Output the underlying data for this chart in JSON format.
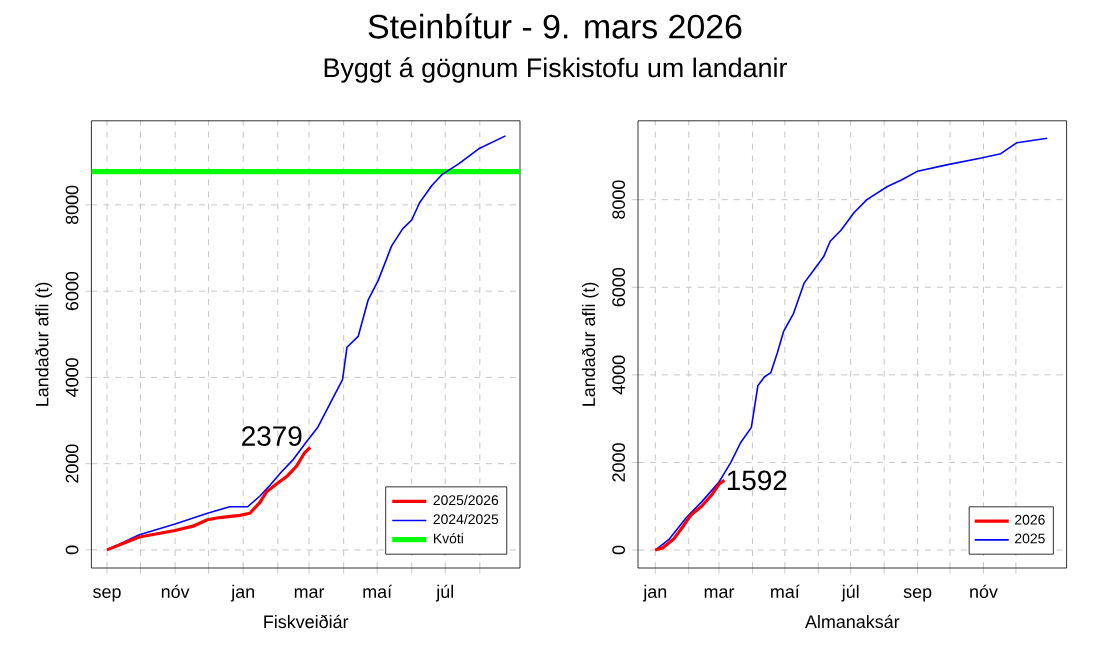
{
  "chart_data": [
    {
      "type": "line",
      "title": "Steinbítur -  9. mars 2026",
      "subtitle": "Byggt á gögnum Fiskistofu um landanir",
      "xlabel": "Fiskveiðiár",
      "ylabel": "Landaður afli (t)",
      "xlim": [
        "2025-08-18",
        "2026-09-06"
      ],
      "ylim": [
        -420,
        9950
      ],
      "xticks": [
        {
          "value": "2025-09-01",
          "label": "sep"
        },
        {
          "value": "2025-10-01",
          "label": null
        },
        {
          "value": "2025-11-01",
          "label": "nóv"
        },
        {
          "value": "2025-12-01",
          "label": null
        },
        {
          "value": "2026-01-01",
          "label": "jan"
        },
        {
          "value": "2026-02-01",
          "label": null
        },
        {
          "value": "2026-03-01",
          "label": "mar"
        },
        {
          "value": "2026-04-01",
          "label": null
        },
        {
          "value": "2026-05-01",
          "label": "maí"
        },
        {
          "value": "2026-06-01",
          "label": null
        },
        {
          "value": "2026-07-01",
          "label": "júl"
        },
        {
          "value": "2026-08-01",
          "label": null
        }
      ],
      "yticks": [
        0,
        2000,
        4000,
        6000,
        8000
      ],
      "grid": true,
      "legend": "bottom right",
      "series": [
        {
          "name": "2025/2026",
          "color": "#ff0000",
          "x": [
            "2025-09-01",
            "2025-09-30",
            "2025-11-01",
            "2025-11-17",
            "2025-11-30",
            "2025-12-11",
            "2025-12-29",
            "2026-01-07",
            "2026-01-16",
            "2026-01-22",
            "2026-02-01",
            "2026-02-09",
            "2026-02-18",
            "2026-02-25",
            "2026-03-02"
          ],
          "values": [
            0,
            300,
            450,
            550,
            700,
            750,
            800,
            850,
            1100,
            1350,
            1550,
            1700,
            1950,
            2250,
            2379
          ]
        },
        {
          "name": "2024/2025",
          "color": "#0000ff",
          "x": [
            "2025-09-01",
            "2025-09-30",
            "2025-11-01",
            "2025-11-30",
            "2025-12-20",
            "2026-01-05",
            "2026-01-16",
            "2026-01-25",
            "2026-02-04",
            "2026-02-15",
            "2026-02-25",
            "2026-03-09",
            "2026-03-22",
            "2026-03-31",
            "2026-04-04",
            "2026-04-14",
            "2026-04-23",
            "2026-05-02",
            "2026-05-14",
            "2026-05-24",
            "2026-06-01",
            "2026-06-08",
            "2026-06-19",
            "2026-06-28",
            "2026-07-13",
            "2026-07-31",
            "2026-08-24"
          ],
          "values": [
            0,
            350,
            600,
            850,
            1000,
            1000,
            1250,
            1500,
            1800,
            2100,
            2450,
            2850,
            3500,
            3950,
            4700,
            4950,
            5800,
            6250,
            7050,
            7450,
            7650,
            8050,
            8450,
            8700,
            8950,
            9300,
            9600
          ]
        }
      ],
      "ref_lines": [
        {
          "axis": "y",
          "value": 8770,
          "label": "Kvóti",
          "color": "#00ff00"
        }
      ],
      "annotations": [
        {
          "text": "2379",
          "x": "2026-03-02",
          "y": 2379
        }
      ]
    },
    {
      "type": "line",
      "xlabel": "Almanaksár",
      "ylabel": "Landaður afli (t)",
      "xlim": [
        "2025-12-16",
        "2027-01-17"
      ],
      "ylim": [
        -410,
        9800
      ],
      "xticks": [
        {
          "value": "2026-01-01",
          "label": "jan"
        },
        {
          "value": "2026-02-01",
          "label": null
        },
        {
          "value": "2026-03-01",
          "label": "mar"
        },
        {
          "value": "2026-04-01",
          "label": null
        },
        {
          "value": "2026-05-01",
          "label": "maí"
        },
        {
          "value": "2026-06-01",
          "label": null
        },
        {
          "value": "2026-07-01",
          "label": "júl"
        },
        {
          "value": "2026-08-01",
          "label": null
        },
        {
          "value": "2026-09-01",
          "label": "sep"
        },
        {
          "value": "2026-10-01",
          "label": null
        },
        {
          "value": "2026-11-01",
          "label": "nóv"
        },
        {
          "value": "2026-12-01",
          "label": null
        }
      ],
      "yticks": [
        0,
        2000,
        4000,
        6000,
        8000
      ],
      "grid": true,
      "legend": "bottom right",
      "series": [
        {
          "name": "2026",
          "color": "#ff0000",
          "x": [
            "2026-01-01",
            "2026-01-08",
            "2026-01-18",
            "2026-01-27",
            "2026-02-03",
            "2026-02-13",
            "2026-02-22",
            "2026-03-01",
            "2026-03-06"
          ],
          "values": [
            0,
            50,
            250,
            550,
            800,
            1000,
            1250,
            1500,
            1592
          ]
        },
        {
          "name": "2025",
          "color": "#0000ff",
          "x": [
            "2026-01-01",
            "2026-01-14",
            "2026-01-30",
            "2026-02-13",
            "2026-03-01",
            "2026-03-12",
            "2026-03-21",
            "2026-03-31",
            "2026-04-06",
            "2026-04-12",
            "2026-04-18",
            "2026-04-24",
            "2026-04-30",
            "2026-05-09",
            "2026-05-19",
            "2026-05-28",
            "2026-06-06",
            "2026-06-12",
            "2026-06-22",
            "2026-07-04",
            "2026-07-16",
            "2026-08-04",
            "2026-08-17",
            "2026-09-01",
            "2026-09-29",
            "2026-10-30",
            "2026-11-17",
            "2026-12-02",
            "2026-12-30"
          ],
          "values": [
            0,
            250,
            750,
            1100,
            1550,
            2000,
            2450,
            2800,
            3750,
            3950,
            4050,
            4500,
            5000,
            5400,
            6100,
            6400,
            6700,
            7050,
            7300,
            7700,
            8000,
            8300,
            8450,
            8650,
            8800,
            8950,
            9050,
            9300,
            9400
          ]
        }
      ],
      "annotations": [
        {
          "text": "1592",
          "x": "2026-03-06",
          "y": 1592
        }
      ]
    }
  ]
}
